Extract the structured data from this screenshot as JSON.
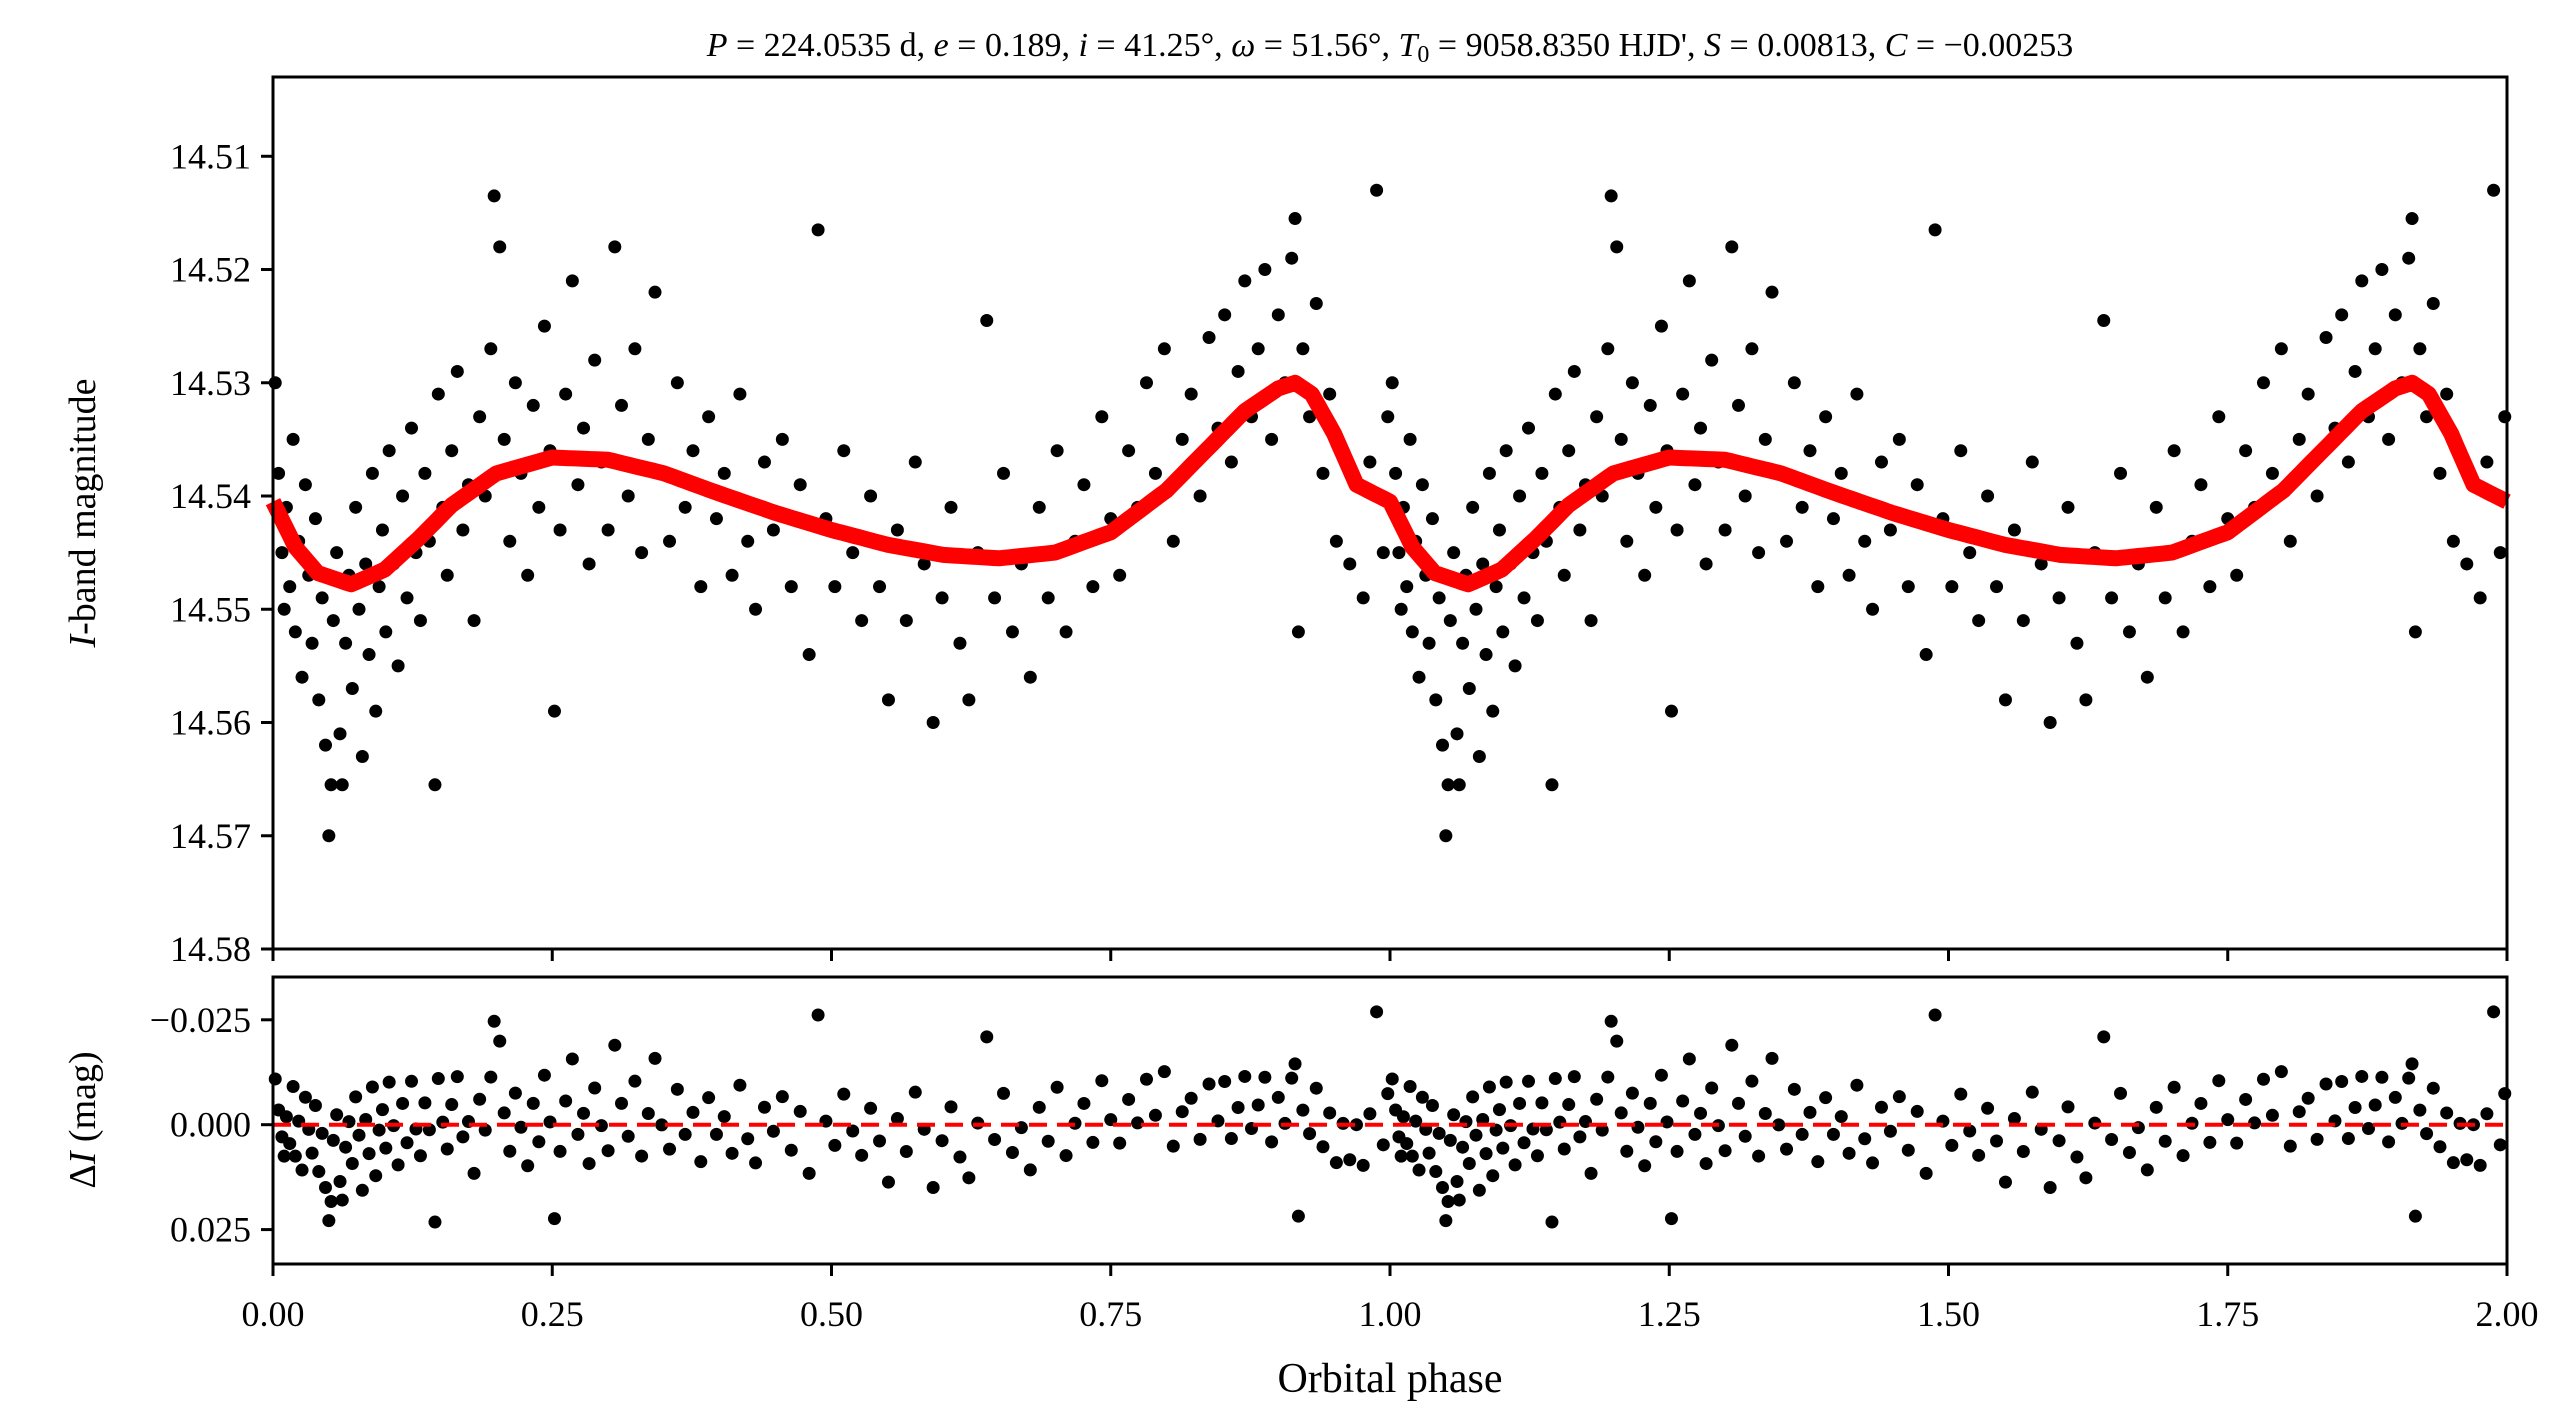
{
  "chart_data": [
    {
      "type": "scatter",
      "title": "P = 224.0535 d, e = 0.189, i = 41.25°, ω = 51.56°, T0 = 9058.8350 HJD', S = 0.00813, C = −0.00253",
      "title_parts": {
        "P": "224.0535 d",
        "e": "0.189",
        "i": "41.25°",
        "omega": "51.56°",
        "T0": "9058.8350 HJD'",
        "S": "0.00813",
        "C": "−0.00253"
      },
      "ylabel": "I-band magnitude",
      "ylabel_italic": "I",
      "ylabel_rest": "-band magnitude",
      "xlim": [
        0,
        2
      ],
      "ylim": [
        14.58,
        14.503
      ],
      "y_inverted": true,
      "yticks": [
        "14.51",
        "14.52",
        "14.53",
        "14.54",
        "14.55",
        "14.56",
        "14.57",
        "14.58"
      ],
      "xticks": [
        0,
        0.25,
        0.5,
        0.75,
        1.0,
        1.25,
        1.5,
        1.75,
        2.0
      ],
      "grid": false,
      "point_color": "#000000",
      "model_color": "#ff0000",
      "phase_repeat": "points at phase 0–1 repeated at phase 1–2",
      "model_curve": {
        "phase": [
          0.0,
          0.02,
          0.04,
          0.07,
          0.1,
          0.13,
          0.16,
          0.2,
          0.25,
          0.3,
          0.35,
          0.4,
          0.45,
          0.5,
          0.55,
          0.6,
          0.65,
          0.7,
          0.75,
          0.8,
          0.84,
          0.87,
          0.9,
          0.915,
          0.93,
          0.95,
          0.97,
          1.0
        ],
        "mag": [
          14.5405,
          14.5445,
          14.5468,
          14.5478,
          14.5465,
          14.5438,
          14.5408,
          14.538,
          14.5366,
          14.5368,
          14.538,
          14.5398,
          14.5415,
          14.543,
          14.5443,
          14.5452,
          14.5455,
          14.545,
          14.5432,
          14.5395,
          14.5355,
          14.5325,
          14.5305,
          14.53,
          14.531,
          14.5345,
          14.539,
          14.5405
        ]
      },
      "observations": [
        [
          0.002,
          14.53
        ],
        [
          0.005,
          14.538
        ],
        [
          0.008,
          14.545
        ],
        [
          0.01,
          14.55
        ],
        [
          0.012,
          14.541
        ],
        [
          0.015,
          14.548
        ],
        [
          0.018,
          14.535
        ],
        [
          0.02,
          14.552
        ],
        [
          0.023,
          14.544
        ],
        [
          0.026,
          14.556
        ],
        [
          0.029,
          14.539
        ],
        [
          0.032,
          14.547
        ],
        [
          0.035,
          14.553
        ],
        [
          0.038,
          14.542
        ],
        [
          0.041,
          14.558
        ],
        [
          0.044,
          14.549
        ],
        [
          0.047,
          14.562
        ],
        [
          0.05,
          14.57
        ],
        [
          0.052,
          14.5655
        ],
        [
          0.054,
          14.551
        ],
        [
          0.057,
          14.545
        ],
        [
          0.06,
          14.561
        ],
        [
          0.062,
          14.5655
        ],
        [
          0.065,
          14.553
        ],
        [
          0.068,
          14.547
        ],
        [
          0.071,
          14.557
        ],
        [
          0.074,
          14.541
        ],
        [
          0.077,
          14.55
        ],
        [
          0.08,
          14.563
        ],
        [
          0.083,
          14.546
        ],
        [
          0.086,
          14.554
        ],
        [
          0.089,
          14.538
        ],
        [
          0.092,
          14.559
        ],
        [
          0.095,
          14.548
        ],
        [
          0.098,
          14.543
        ],
        [
          0.101,
          14.552
        ],
        [
          0.104,
          14.536
        ],
        [
          0.108,
          14.546
        ],
        [
          0.112,
          14.555
        ],
        [
          0.116,
          14.54
        ],
        [
          0.12,
          14.549
        ],
        [
          0.124,
          14.534
        ],
        [
          0.128,
          14.545
        ],
        [
          0.132,
          14.551
        ],
        [
          0.136,
          14.538
        ],
        [
          0.14,
          14.544
        ],
        [
          0.145,
          14.5655
        ],
        [
          0.148,
          14.531
        ],
        [
          0.152,
          14.541
        ],
        [
          0.156,
          14.547
        ],
        [
          0.16,
          14.536
        ],
        [
          0.165,
          14.529
        ],
        [
          0.17,
          14.543
        ],
        [
          0.175,
          14.539
        ],
        [
          0.18,
          14.551
        ],
        [
          0.185,
          14.533
        ],
        [
          0.19,
          14.54
        ],
        [
          0.195,
          14.527
        ],
        [
          0.198,
          14.5135
        ],
        [
          0.203,
          14.518
        ],
        [
          0.207,
          14.535
        ],
        [
          0.212,
          14.544
        ],
        [
          0.217,
          14.53
        ],
        [
          0.222,
          14.538
        ],
        [
          0.228,
          14.547
        ],
        [
          0.233,
          14.532
        ],
        [
          0.238,
          14.541
        ],
        [
          0.243,
          14.525
        ],
        [
          0.248,
          14.536
        ],
        [
          0.252,
          14.559
        ],
        [
          0.257,
          14.543
        ],
        [
          0.262,
          14.531
        ],
        [
          0.268,
          14.521
        ],
        [
          0.273,
          14.539
        ],
        [
          0.278,
          14.534
        ],
        [
          0.283,
          14.546
        ],
        [
          0.288,
          14.528
        ],
        [
          0.294,
          14.537
        ],
        [
          0.3,
          14.543
        ],
        [
          0.306,
          14.518
        ],
        [
          0.312,
          14.532
        ],
        [
          0.318,
          14.54
        ],
        [
          0.324,
          14.527
        ],
        [
          0.33,
          14.545
        ],
        [
          0.336,
          14.535
        ],
        [
          0.342,
          14.522
        ],
        [
          0.348,
          14.538
        ],
        [
          0.355,
          14.544
        ],
        [
          0.362,
          14.53
        ],
        [
          0.369,
          14.541
        ],
        [
          0.376,
          14.536
        ],
        [
          0.383,
          14.548
        ],
        [
          0.39,
          14.533
        ],
        [
          0.397,
          14.542
        ],
        [
          0.404,
          14.538
        ],
        [
          0.411,
          14.547
        ],
        [
          0.418,
          14.531
        ],
        [
          0.425,
          14.544
        ],
        [
          0.432,
          14.55
        ],
        [
          0.44,
          14.537
        ],
        [
          0.448,
          14.543
        ],
        [
          0.456,
          14.535
        ],
        [
          0.464,
          14.548
        ],
        [
          0.472,
          14.539
        ],
        [
          0.48,
          14.554
        ],
        [
          0.488,
          14.5165
        ],
        [
          0.495,
          14.542
        ],
        [
          0.503,
          14.548
        ],
        [
          0.511,
          14.536
        ],
        [
          0.519,
          14.545
        ],
        [
          0.527,
          14.551
        ],
        [
          0.535,
          14.54
        ],
        [
          0.543,
          14.548
        ],
        [
          0.551,
          14.558
        ],
        [
          0.559,
          14.543
        ],
        [
          0.567,
          14.551
        ],
        [
          0.575,
          14.537
        ],
        [
          0.583,
          14.546
        ],
        [
          0.591,
          14.56
        ],
        [
          0.599,
          14.549
        ],
        [
          0.607,
          14.541
        ],
        [
          0.615,
          14.553
        ],
        [
          0.623,
          14.558
        ],
        [
          0.631,
          14.545
        ],
        [
          0.639,
          14.5245
        ],
        [
          0.646,
          14.549
        ],
        [
          0.654,
          14.538
        ],
        [
          0.662,
          14.552
        ],
        [
          0.67,
          14.546
        ],
        [
          0.678,
          14.556
        ],
        [
          0.686,
          14.541
        ],
        [
          0.694,
          14.549
        ],
        [
          0.702,
          14.536
        ],
        [
          0.71,
          14.552
        ],
        [
          0.718,
          14.544
        ],
        [
          0.726,
          14.539
        ],
        [
          0.734,
          14.548
        ],
        [
          0.742,
          14.533
        ],
        [
          0.75,
          14.542
        ],
        [
          0.758,
          14.547
        ],
        [
          0.766,
          14.536
        ],
        [
          0.774,
          14.541
        ],
        [
          0.782,
          14.53
        ],
        [
          0.79,
          14.538
        ],
        [
          0.798,
          14.527
        ],
        [
          0.806,
          14.544
        ],
        [
          0.814,
          14.535
        ],
        [
          0.822,
          14.531
        ],
        [
          0.83,
          14.54
        ],
        [
          0.838,
          14.526
        ],
        [
          0.846,
          14.534
        ],
        [
          0.852,
          14.524
        ],
        [
          0.858,
          14.537
        ],
        [
          0.864,
          14.529
        ],
        [
          0.87,
          14.521
        ],
        [
          0.876,
          14.533
        ],
        [
          0.882,
          14.527
        ],
        [
          0.888,
          14.52
        ],
        [
          0.894,
          14.535
        ],
        [
          0.9,
          14.524
        ],
        [
          0.906,
          14.53
        ],
        [
          0.912,
          14.519
        ],
        [
          0.915,
          14.5155
        ],
        [
          0.918,
          14.552
        ],
        [
          0.922,
          14.527
        ],
        [
          0.928,
          14.533
        ],
        [
          0.934,
          14.523
        ],
        [
          0.94,
          14.538
        ],
        [
          0.946,
          14.531
        ],
        [
          0.952,
          14.544
        ],
        [
          0.958,
          14.536
        ],
        [
          0.964,
          14.546
        ],
        [
          0.97,
          14.539
        ],
        [
          0.976,
          14.549
        ],
        [
          0.982,
          14.537
        ],
        [
          0.988,
          14.513
        ],
        [
          0.994,
          14.545
        ],
        [
          0.998,
          14.533
        ]
      ]
    },
    {
      "type": "scatter",
      "ylabel": "ΔI (mag)",
      "ylabel_delta": "Δ",
      "ylabel_italic": "I",
      "ylabel_rest": " (mag)",
      "xlabel": "Orbital phase",
      "xlim": [
        0,
        2
      ],
      "ylim": [
        0.0332,
        -0.0352
      ],
      "y_inverted": true,
      "yticks": [
        "−0.025",
        "0.000",
        "0.025"
      ],
      "ytick_values": [
        -0.025,
        0.0,
        0.025
      ],
      "xticks": [
        "0.00",
        "0.25",
        "0.50",
        "0.75",
        "1.00",
        "1.25",
        "1.50",
        "1.75",
        "2.00"
      ],
      "reference_line": {
        "value": 0.0,
        "style": "dashed",
        "color": "#ff0000"
      },
      "residuals": "observations minus model curve",
      "grid": false
    }
  ]
}
